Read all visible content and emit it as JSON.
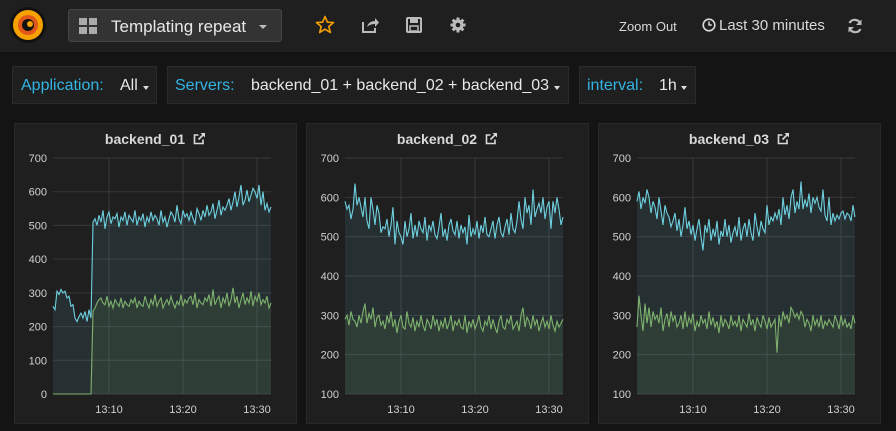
{
  "navbar": {
    "dashboard_title": "Templating repeat",
    "zoom_out_label": "Zoom Out",
    "time_range_label": "Last 30 minutes",
    "icons": [
      "grafana-logo-icon",
      "dashboard-grid-icon",
      "star-icon",
      "share-icon",
      "save-icon",
      "settings-gear-icon",
      "clock-icon",
      "refresh-icon"
    ],
    "accent_color": "#f7a100"
  },
  "template_vars": {
    "application": {
      "label": "Application:",
      "value": "All"
    },
    "servers": {
      "label": "Servers:",
      "value": "backend_01 + backend_02 + backend_03"
    },
    "interval": {
      "label": "interval:",
      "value": "1h"
    }
  },
  "colors": {
    "series_a": "#6ed0e0",
    "series_b": "#7eb26d",
    "label_blue": "#33b5e5"
  },
  "chart_data": [
    {
      "type": "line",
      "title": "backend_01",
      "ylim": [
        0,
        700
      ],
      "yticks": [
        0,
        100,
        200,
        300,
        400,
        500,
        600,
        700
      ],
      "xticks": [
        "13:10",
        "13:20",
        "13:30"
      ],
      "grid": true,
      "series": [
        {
          "values": [
            260,
            250,
            305,
            295,
            310,
            300,
            305,
            285,
            290,
            260,
            265,
            225,
            215,
            230,
            240,
            225,
            245,
            215,
            250,
            225,
            510,
            520,
            500,
            530,
            510,
            545,
            490,
            525,
            540,
            505,
            525,
            520,
            535,
            495,
            525,
            515,
            540,
            500,
            530,
            520,
            510,
            545,
            500,
            525,
            515,
            535,
            495,
            525,
            510,
            540,
            515,
            530,
            520,
            500,
            545,
            510,
            525,
            495,
            520,
            540,
            530,
            510,
            560,
            520,
            505,
            545,
            525,
            535,
            515,
            540,
            520,
            505,
            550,
            535,
            515,
            545,
            525,
            560,
            530,
            540,
            565,
            520,
            545,
            575,
            530,
            555,
            545,
            560,
            580,
            545,
            570,
            600,
            555,
            585,
            620,
            560,
            575,
            605,
            570,
            590,
            610,
            600,
            580,
            620,
            560,
            600,
            545,
            565,
            540,
            555
          ]
        },
        {
          "values": [
            0,
            0,
            0,
            0,
            0,
            0,
            0,
            0,
            0,
            0,
            0,
            0,
            0,
            0,
            0,
            0,
            0,
            0,
            0,
            0,
            245,
            255,
            270,
            280,
            285,
            270,
            265,
            290,
            260,
            275,
            255,
            280,
            270,
            260,
            285,
            255,
            275,
            265,
            260,
            280,
            270,
            285,
            255,
            275,
            265,
            260,
            290,
            270,
            255,
            280,
            265,
            295,
            260,
            275,
            285,
            255,
            270,
            280,
            265,
            290,
            270,
            255,
            275,
            265,
            295,
            260,
            280,
            270,
            285,
            290,
            265,
            300,
            255,
            280,
            270,
            265,
            285,
            275,
            295,
            260,
            310,
            265,
            280,
            290,
            255,
            285,
            270,
            300,
            260,
            280,
            315,
            270,
            290,
            255,
            280,
            300,
            265,
            285,
            270,
            305,
            260,
            290,
            275,
            300,
            265,
            280,
            270,
            290,
            255,
            270
          ]
        }
      ]
    },
    {
      "type": "line",
      "title": "backend_02",
      "ylim": [
        100,
        700
      ],
      "yticks": [
        100,
        200,
        300,
        400,
        500,
        600,
        700
      ],
      "xticks": [
        "13:10",
        "13:20",
        "13:30"
      ],
      "grid": true,
      "series": [
        {
          "values": [
            590,
            570,
            580,
            545,
            570,
            635,
            580,
            600,
            575,
            550,
            600,
            540,
            520,
            600,
            570,
            530,
            580,
            560,
            510,
            525,
            520,
            545,
            500,
            530,
            575,
            480,
            540,
            510,
            500,
            480,
            540,
            500,
            520,
            560,
            495,
            530,
            500,
            540,
            520,
            510,
            550,
            490,
            530,
            515,
            540,
            505,
            495,
            525,
            560,
            500,
            520,
            490,
            530,
            545,
            515,
            505,
            540,
            495,
            530,
            510,
            525,
            480,
            555,
            500,
            520,
            505,
            540,
            495,
            530,
            510,
            550,
            505,
            500,
            520,
            540,
            495,
            530,
            550,
            510,
            500,
            525,
            545,
            505,
            560,
            520,
            510,
            540,
            590,
            545,
            520,
            600,
            560,
            580,
            530,
            620,
            550,
            570,
            585,
            560,
            600,
            545,
            575,
            590,
            520,
            590,
            560,
            600,
            570,
            530,
            550
          ]
        },
        {
          "values": [
            290,
            300,
            275,
            310,
            290,
            285,
            270,
            300,
            280,
            310,
            330,
            280,
            305,
            290,
            320,
            270,
            295,
            300,
            275,
            285,
            265,
            300,
            280,
            310,
            270,
            290,
            255,
            285,
            300,
            270,
            265,
            310,
            280,
            270,
            295,
            260,
            285,
            270,
            300,
            275,
            260,
            290,
            280,
            265,
            300,
            275,
            290,
            260,
            285,
            270,
            295,
            265,
            280,
            300,
            260,
            285,
            275,
            290,
            270,
            265,
            300,
            255,
            285,
            270,
            290,
            265,
            280,
            300,
            270,
            260,
            285,
            275,
            300,
            265,
            290,
            270,
            255,
            285,
            300,
            270,
            265,
            290,
            280,
            300,
            265,
            275,
            285,
            260,
            300,
            320,
            270,
            295,
            285,
            265,
            300,
            275,
            290,
            260,
            280,
            295,
            270,
            285,
            265,
            300,
            275,
            260,
            285,
            270,
            280,
            290
          ]
        }
      ]
    },
    {
      "type": "line",
      "title": "backend_03",
      "ylim": [
        100,
        700
      ],
      "yticks": [
        100,
        200,
        300,
        400,
        500,
        600,
        700
      ],
      "xticks": [
        "13:10",
        "13:20",
        "13:30"
      ],
      "grid": true,
      "series": [
        {
          "values": [
            590,
            615,
            570,
            600,
            585,
            620,
            600,
            560,
            590,
            575,
            545,
            600,
            565,
            530,
            580,
            560,
            550,
            525,
            540,
            560,
            515,
            545,
            500,
            530,
            575,
            520,
            540,
            505,
            530,
            490,
            520,
            545,
            500,
            465,
            530,
            510,
            545,
            490,
            520,
            500,
            540,
            480,
            515,
            500,
            545,
            500,
            530,
            485,
            510,
            525,
            500,
            550,
            490,
            520,
            535,
            500,
            545,
            510,
            490,
            560,
            525,
            500,
            540,
            520,
            510,
            580,
            530,
            550,
            540,
            560,
            545,
            570,
            530,
            600,
            555,
            580,
            545,
            600,
            620,
            560,
            590,
            570,
            640,
            570,
            595,
            575,
            610,
            560,
            600,
            585,
            600,
            575,
            565,
            620,
            555,
            540,
            600,
            530,
            560,
            540,
            555,
            545,
            560,
            565,
            545,
            560,
            555,
            540,
            580,
            550
          ]
        },
        {
          "values": [
            270,
            350,
            300,
            260,
            330,
            280,
            320,
            270,
            310,
            290,
            300,
            280,
            320,
            260,
            290,
            305,
            270,
            310,
            285,
            300,
            270,
            280,
            300,
            265,
            310,
            270,
            295,
            280,
            305,
            260,
            285,
            270,
            300,
            280,
            290,
            265,
            310,
            275,
            295,
            270,
            285,
            255,
            300,
            270,
            290,
            280,
            265,
            300,
            275,
            285,
            270,
            300,
            260,
            290,
            280,
            270,
            305,
            275,
            290,
            260,
            295,
            280,
            270,
            300,
            285,
            265,
            295,
            270,
            280,
            290,
            205,
            300,
            270,
            310,
            290,
            300,
            280,
            320,
            310,
            295,
            305,
            290,
            310,
            300,
            270,
            290,
            280,
            260,
            300,
            275,
            290,
            270,
            300,
            265,
            285,
            275,
            290,
            280,
            270,
            300,
            285,
            265,
            300,
            275,
            290,
            270,
            280,
            265,
            300,
            280
          ]
        }
      ]
    }
  ]
}
